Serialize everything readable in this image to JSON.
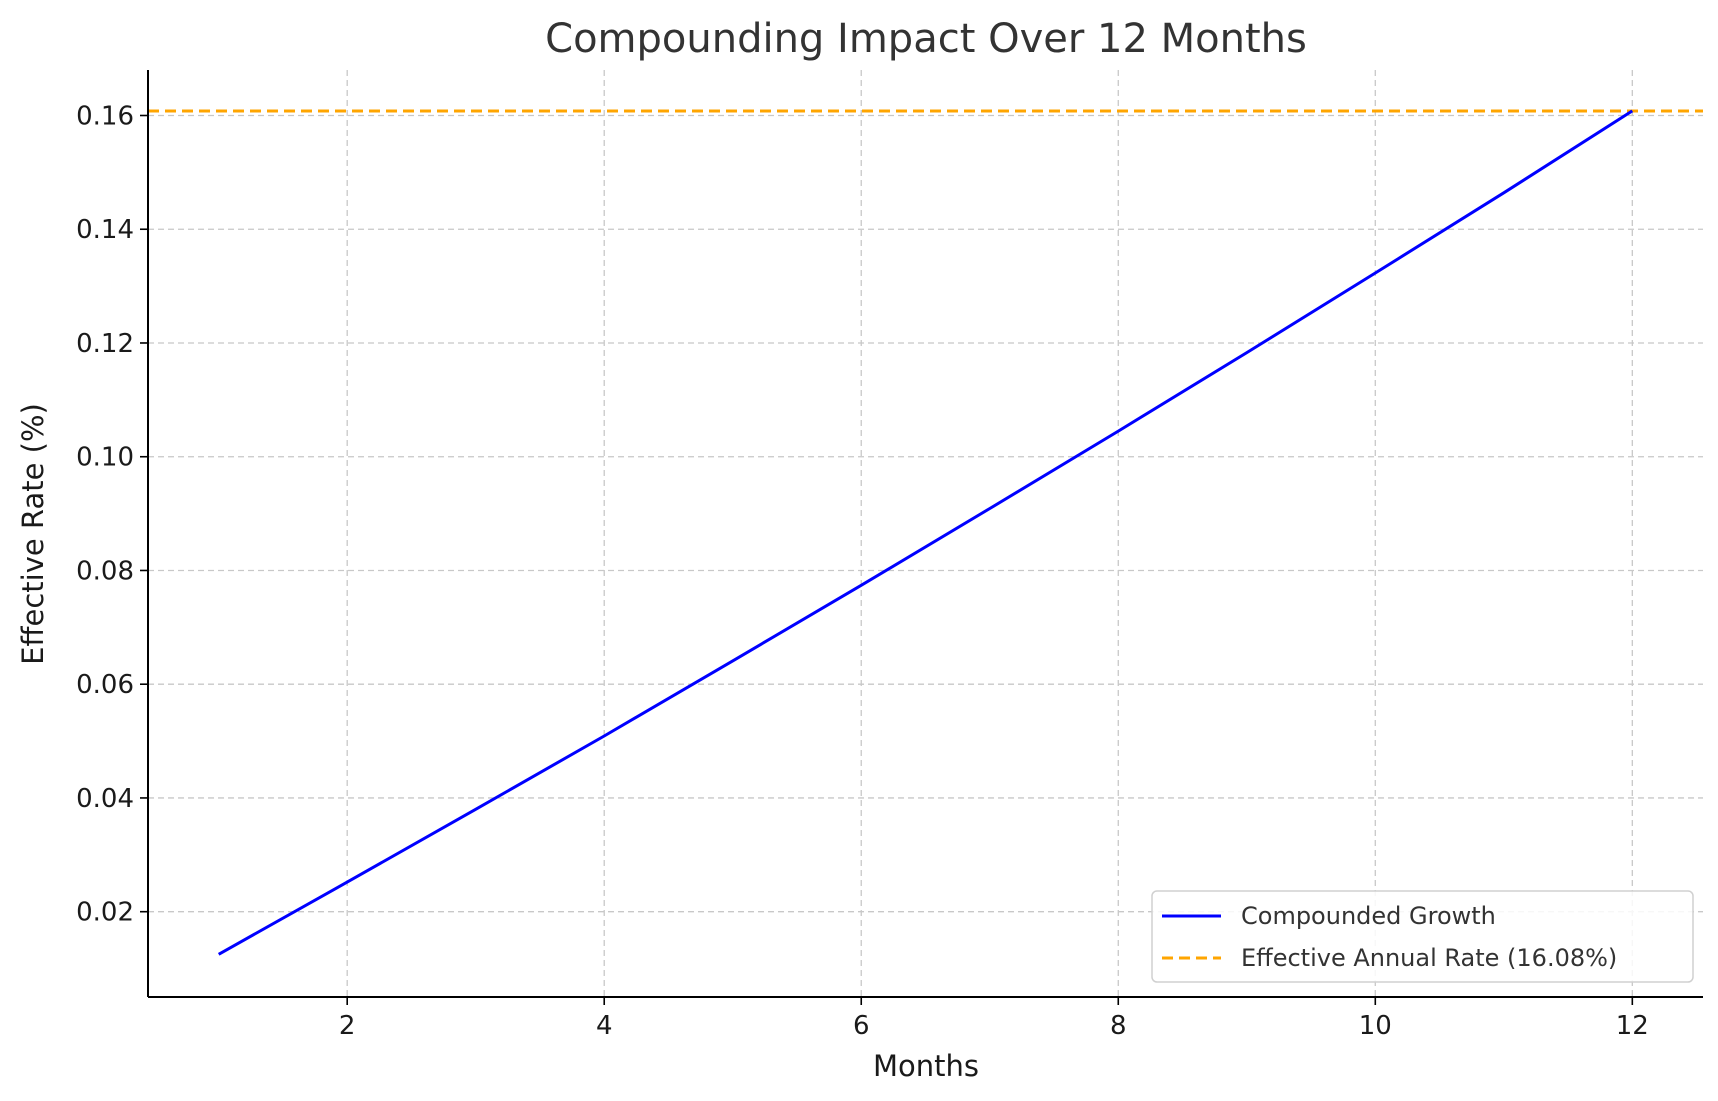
{
  "chart_data": {
    "type": "line",
    "title": "Compounding Impact Over 12 Months",
    "xlabel": "Months",
    "ylabel": "Effective Rate (%)",
    "xlim": [
      0.45,
      12.55
    ],
    "ylim": [
      0.005,
      0.168
    ],
    "xticks": [
      2,
      4,
      6,
      8,
      10,
      12
    ],
    "yticks": [
      0.02,
      0.04,
      0.06,
      0.08,
      0.1,
      0.12,
      0.14,
      0.16
    ],
    "ytick_labels": [
      "0.02",
      "0.04",
      "0.06",
      "0.08",
      "0.10",
      "0.12",
      "0.14",
      "0.16"
    ],
    "grid": true,
    "legend_position": "lower-right",
    "series": [
      {
        "name": "Compounded Growth",
        "color": "#0000ff",
        "style": "solid",
        "x": [
          1,
          2,
          3,
          4,
          5,
          6,
          7,
          8,
          9,
          10,
          11,
          12
        ],
        "y": [
          0.0125,
          0.0252,
          0.038,
          0.0509,
          0.0641,
          0.0774,
          0.0909,
          0.1045,
          0.1183,
          0.1323,
          0.1464,
          0.1608
        ]
      }
    ],
    "reference_lines": [
      {
        "name": "Effective Annual Rate (16.08%)",
        "color": "#ffa500",
        "style": "dashed",
        "y": 0.1608
      }
    ]
  }
}
